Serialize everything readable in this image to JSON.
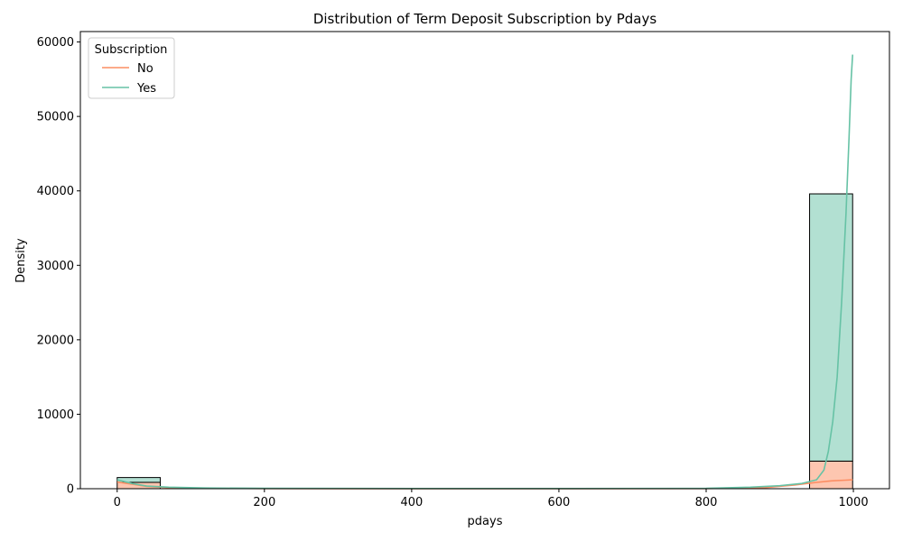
{
  "chart_data": {
    "type": "bar",
    "title": "Distribution of Term Deposit Subscription by Pdays",
    "xlabel": "pdays",
    "ylabel": "Density",
    "xlim": [
      -50,
      1049
    ],
    "ylim": [
      0,
      61400
    ],
    "xticks": [
      0,
      200,
      400,
      600,
      800,
      1000
    ],
    "yticks": [
      0,
      10000,
      20000,
      30000,
      40000,
      50000,
      60000
    ],
    "grid": false,
    "legend": {
      "title": "Subscription",
      "placement": "top-left",
      "entries": [
        {
          "label": "No",
          "color": "#fc8d62"
        },
        {
          "label": "Yes",
          "color": "#66c2a5"
        }
      ]
    },
    "stacked": true,
    "bins": [
      {
        "x0": 0,
        "x1": 58.5,
        "no": 850,
        "yes": 650
      },
      {
        "x0": 940.5,
        "x1": 999,
        "no": 3700,
        "yes": 35900
      }
    ],
    "kde": [
      {
        "name": "No",
        "color": "#fc8d62",
        "points": [
          [
            0,
            900
          ],
          [
            20,
            600
          ],
          [
            40,
            300
          ],
          [
            70,
            150
          ],
          [
            120,
            60
          ],
          [
            200,
            20
          ],
          [
            400,
            5
          ],
          [
            600,
            5
          ],
          [
            800,
            20
          ],
          [
            880,
            150
          ],
          [
            920,
            500
          ],
          [
            950,
            850
          ],
          [
            970,
            1050
          ],
          [
            990,
            1150
          ],
          [
            999,
            1200
          ]
        ]
      },
      {
        "name": "Yes",
        "color": "#66c2a5",
        "points": [
          [
            0,
            1200
          ],
          [
            20,
            700
          ],
          [
            40,
            350
          ],
          [
            70,
            200
          ],
          [
            120,
            100
          ],
          [
            200,
            50
          ],
          [
            400,
            20
          ],
          [
            600,
            20
          ],
          [
            800,
            50
          ],
          [
            860,
            200
          ],
          [
            900,
            400
          ],
          [
            930,
            700
          ],
          [
            950,
            1200
          ],
          [
            960,
            2500
          ],
          [
            966,
            5000
          ],
          [
            972,
            9000
          ],
          [
            978,
            15000
          ],
          [
            984,
            25000
          ],
          [
            990,
            37000
          ],
          [
            994,
            47000
          ],
          [
            997,
            55000
          ],
          [
            999,
            58300
          ]
        ]
      }
    ]
  }
}
